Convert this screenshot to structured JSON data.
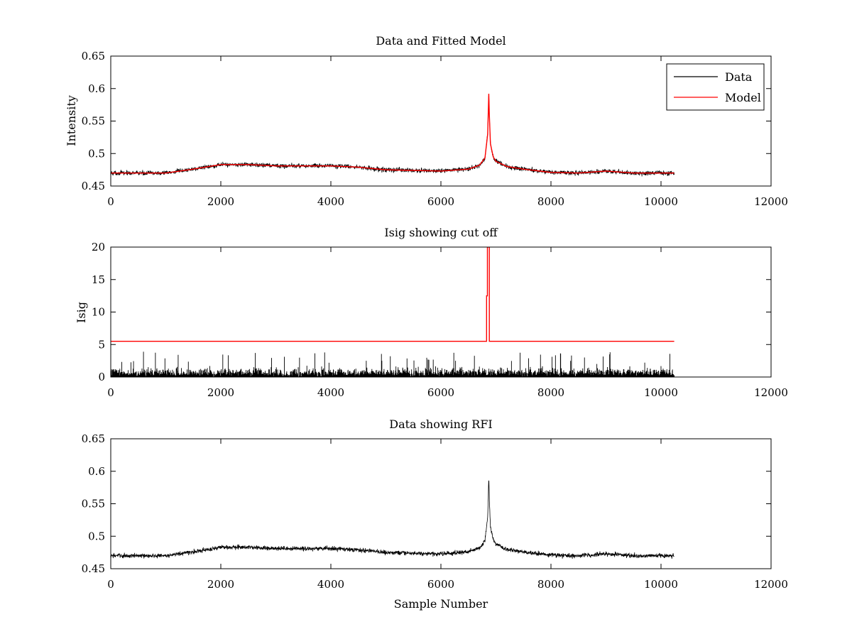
{
  "chart_data": [
    {
      "type": "line",
      "title": "Data and Fitted Model",
      "xlabel": "",
      "ylabel": "Intensity",
      "xlim": [
        0,
        12000
      ],
      "ylim": [
        0.45,
        0.65
      ],
      "xticks": [
        0,
        2000,
        4000,
        6000,
        8000,
        10000,
        12000
      ],
      "xtick_labels": [
        "0",
        "2000",
        "4000",
        "6000",
        "8000",
        "10000",
        "12000"
      ],
      "yticks": [
        0.45,
        0.5,
        0.55,
        0.6,
        0.65
      ],
      "ytick_labels": [
        "0.45",
        "0.5",
        "0.55",
        "0.6",
        "0.65"
      ],
      "grid": false,
      "legend": {
        "placement": "top-right",
        "entries": [
          {
            "label": "Data",
            "color": "#000000"
          },
          {
            "label": "Model",
            "color": "#ff0000"
          }
        ]
      },
      "series": [
        {
          "name": "Data",
          "color": "#000000",
          "kind": "noisy-line",
          "n_samples": 10240,
          "baseline_x": [
            0,
            1000,
            1500,
            2000,
            2500,
            3000,
            4000,
            4500,
            5000,
            6000,
            6500,
            6700,
            6800,
            6850,
            6870,
            6880,
            6900,
            6950,
            7000,
            7200,
            7500,
            8000,
            8500,
            9000,
            9500,
            10240
          ],
          "baseline_y": [
            0.47,
            0.47,
            0.476,
            0.483,
            0.483,
            0.481,
            0.481,
            0.479,
            0.475,
            0.473,
            0.476,
            0.482,
            0.493,
            0.53,
            0.59,
            0.56,
            0.515,
            0.495,
            0.488,
            0.48,
            0.476,
            0.471,
            0.47,
            0.473,
            0.47,
            0.47
          ],
          "noise_amplitude": 0.006
        },
        {
          "name": "Model",
          "color": "#ff0000",
          "kind": "line",
          "x": [
            0,
            1000,
            1500,
            2000,
            2500,
            3000,
            4000,
            4500,
            5000,
            6000,
            6500,
            6700,
            6800,
            6850,
            6870,
            6880,
            6900,
            6950,
            7000,
            7200,
            7500,
            8000,
            8500,
            9000,
            9500,
            10240
          ],
          "y": [
            0.47,
            0.47,
            0.476,
            0.483,
            0.483,
            0.481,
            0.481,
            0.479,
            0.475,
            0.473,
            0.476,
            0.482,
            0.493,
            0.53,
            0.592,
            0.56,
            0.515,
            0.495,
            0.488,
            0.48,
            0.476,
            0.471,
            0.47,
            0.473,
            0.47,
            0.47
          ]
        }
      ]
    },
    {
      "type": "line",
      "title": "Isig showing cut off",
      "xlabel": "",
      "ylabel": "Isig",
      "xlim": [
        0,
        12000
      ],
      "ylim": [
        0,
        20
      ],
      "xticks": [
        0,
        2000,
        4000,
        6000,
        8000,
        10000,
        12000
      ],
      "xtick_labels": [
        "0",
        "2000",
        "4000",
        "6000",
        "8000",
        "10000",
        "12000"
      ],
      "yticks": [
        0,
        5,
        10,
        15,
        20
      ],
      "ytick_labels": [
        "0",
        "5",
        "10",
        "15",
        "20"
      ],
      "grid": false,
      "series": [
        {
          "color": "#000000",
          "kind": "noise-band",
          "n_samples": 10240,
          "typical_max": 2.0,
          "peak_max": 4.0
        },
        {
          "color": "#ff0000",
          "kind": "line",
          "x": [
            0,
            6830,
            6830,
            6845,
            6845,
            6880,
            6880,
            10240
          ],
          "y": [
            5.5,
            5.5,
            12.5,
            12.5,
            20,
            20,
            5.5,
            5.5
          ]
        }
      ]
    },
    {
      "type": "line",
      "title": "Data showing RFI",
      "xlabel": "Sample Number",
      "ylabel": "",
      "xlim": [
        0,
        12000
      ],
      "ylim": [
        0.45,
        0.65
      ],
      "xticks": [
        0,
        2000,
        4000,
        6000,
        8000,
        10000,
        12000
      ],
      "xtick_labels": [
        "0",
        "2000",
        "4000",
        "6000",
        "8000",
        "10000",
        "12000"
      ],
      "yticks": [
        0.45,
        0.5,
        0.55,
        0.6,
        0.65
      ],
      "ytick_labels": [
        "0.45",
        "0.5",
        "0.55",
        "0.6",
        "0.65"
      ],
      "grid": false,
      "series": [
        {
          "color": "#000000",
          "kind": "noisy-line",
          "n_samples": 10240,
          "baseline_x": [
            0,
            1000,
            1500,
            2000,
            2500,
            3000,
            4000,
            4500,
            5000,
            6000,
            6500,
            6700,
            6800,
            6850,
            6870,
            6880,
            6900,
            6950,
            7000,
            7200,
            7500,
            8000,
            8500,
            9000,
            9500,
            10240
          ],
          "baseline_y": [
            0.47,
            0.47,
            0.476,
            0.483,
            0.483,
            0.481,
            0.481,
            0.479,
            0.475,
            0.473,
            0.476,
            0.482,
            0.493,
            0.53,
            0.59,
            0.56,
            0.515,
            0.495,
            0.488,
            0.48,
            0.476,
            0.471,
            0.47,
            0.473,
            0.47,
            0.47
          ],
          "noise_amplitude": 0.006
        }
      ]
    }
  ]
}
